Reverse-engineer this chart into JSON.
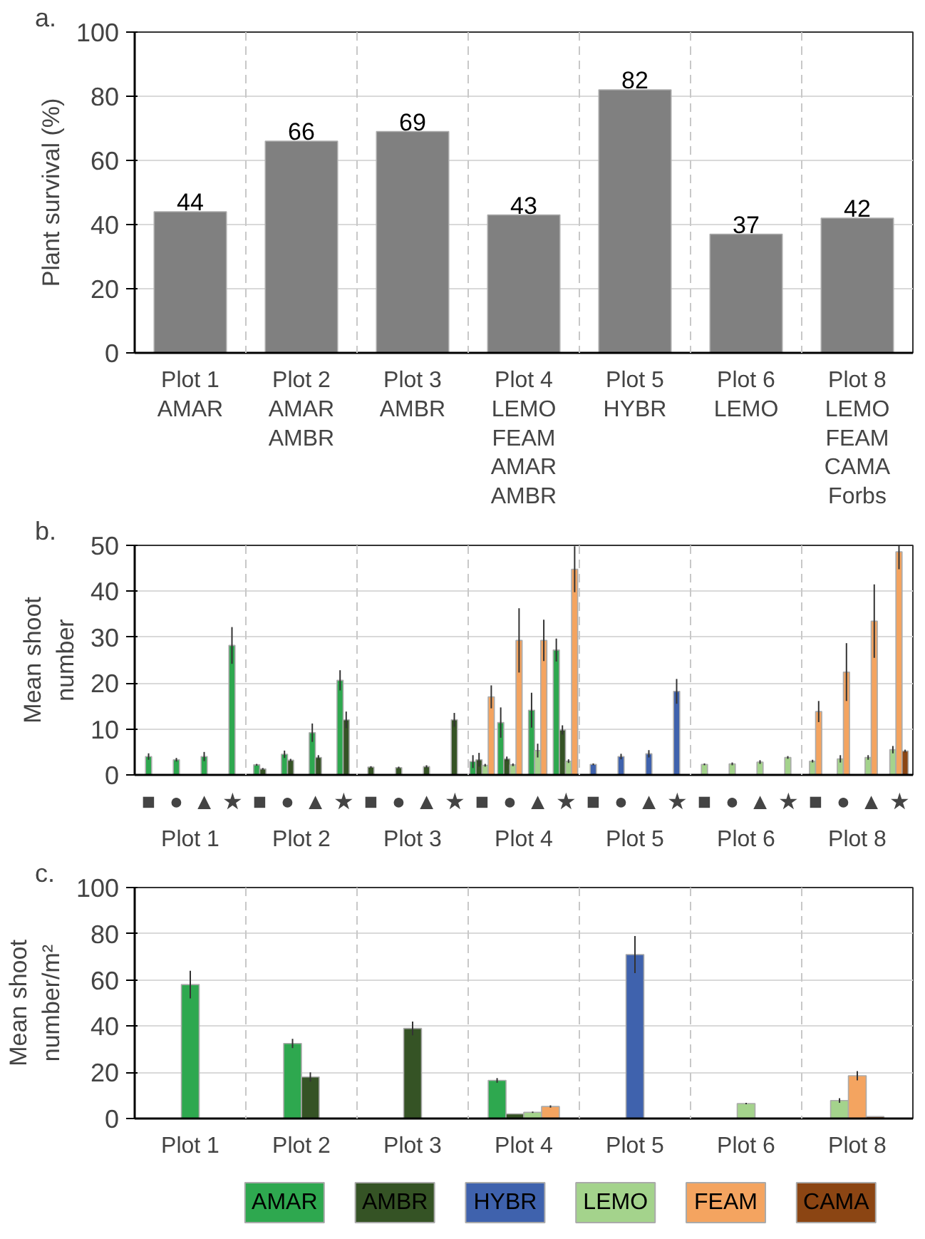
{
  "chart_data": [
    {
      "type": "bar",
      "title": "a.",
      "ylabel": "Plant survival (%)",
      "categories": [
        "Plot 1\nAMAR",
        "Plot 2\nAMAR\nAMBR",
        "Plot 3\nAMBR",
        "Plot 4\nLEMO\nFEAM\nAMAR\nAMBR",
        "Plot 5\nHYBR",
        "Plot 6\nLEMO",
        "Plot 8\nLEMO\nFEAM\nCAMA\nForbs"
      ],
      "values": [
        44,
        66,
        69,
        43,
        82,
        37,
        42
      ],
      "color": "#808080",
      "data_labels": true,
      "ylim": [
        0,
        100
      ],
      "yticks": [
        0,
        20,
        40,
        60,
        80,
        100
      ],
      "grid": "y"
    },
    {
      "type": "bar",
      "title": "b.",
      "ylabel": "Mean shoot\nnumber",
      "categories": [
        "■",
        "●",
        "▲",
        "★",
        "■",
        "●",
        "▲",
        "★",
        "■",
        "●",
        "▲",
        "★",
        "■",
        "●",
        "▲",
        "★",
        "■",
        "●",
        "▲",
        "★",
        "■",
        "●",
        "▲",
        "★",
        "■",
        "●",
        "▲",
        "★"
      ],
      "annotations": [
        "Plot 1",
        "Plot 2",
        "Plot 3",
        "Plot 4",
        "Plot 5",
        "Plot 6",
        "Plot 8"
      ],
      "series": [
        {
          "color": "#2ea84f",
          "values": [
            4,
            3.3,
            4,
            28.2,
            2.2,
            4.5,
            9.2,
            20.6,
            null,
            null,
            null,
            null,
            2.9,
            11.4,
            14.1,
            27.2,
            null,
            null,
            null,
            null,
            null,
            null,
            null,
            null,
            null,
            null,
            null,
            null
          ],
          "errors": [
            0.7,
            0.4,
            1,
            4,
            0.2,
            0.8,
            2,
            2.2,
            null,
            null,
            null,
            null,
            1.4,
            3.3,
            3.8,
            2.5,
            null,
            null,
            null,
            null,
            null,
            null,
            null,
            null,
            null,
            null,
            null,
            null
          ]
        },
        {
          "color": "#355325",
          "values": [
            null,
            null,
            null,
            null,
            1.3,
            3.2,
            3.8,
            12,
            1.7,
            1.6,
            1.8,
            12,
            3.3,
            3.5,
            null,
            9.8,
            null,
            null,
            null,
            null,
            null,
            null,
            null,
            null,
            null,
            null,
            null,
            null
          ],
          "errors": [
            null,
            null,
            null,
            null,
            0.2,
            0.3,
            0.5,
            1.8,
            0.2,
            0.2,
            0.3,
            1.5,
            1.5,
            0.5,
            null,
            1,
            null,
            null,
            null,
            null,
            null,
            null,
            null,
            null,
            null,
            null,
            null,
            null
          ]
        },
        {
          "color": "#3f62ad",
          "values": [
            null,
            null,
            null,
            null,
            null,
            null,
            null,
            null,
            null,
            null,
            null,
            null,
            null,
            null,
            null,
            null,
            2.3,
            4,
            4.6,
            18.2,
            null,
            null,
            null,
            null,
            null,
            null,
            null,
            null
          ],
          "errors": [
            null,
            null,
            null,
            null,
            null,
            null,
            null,
            null,
            null,
            null,
            null,
            null,
            null,
            null,
            null,
            null,
            0.2,
            0.6,
            0.8,
            2.7,
            null,
            null,
            null,
            null,
            null,
            null,
            null,
            null
          ]
        },
        {
          "color": "#a4d38c",
          "values": [
            null,
            null,
            null,
            null,
            null,
            null,
            null,
            null,
            null,
            null,
            null,
            null,
            2.1,
            2.2,
            5.3,
            3,
            null,
            null,
            null,
            null,
            2.3,
            2.4,
            2.8,
            3.8,
            3,
            3.5,
            3.8,
            5.5
          ],
          "errors": [
            null,
            null,
            null,
            null,
            null,
            null,
            null,
            null,
            null,
            null,
            null,
            null,
            0.3,
            0.3,
            1.5,
            0.4,
            null,
            null,
            null,
            null,
            0.2,
            0.3,
            0.4,
            0.3,
            0.3,
            0.8,
            0.5,
            0.8
          ]
        },
        {
          "color": "#f4a460",
          "values": [
            null,
            null,
            null,
            null,
            null,
            null,
            null,
            null,
            null,
            null,
            null,
            null,
            17,
            29.3,
            29.3,
            44.8,
            null,
            null,
            null,
            null,
            null,
            null,
            null,
            null,
            13.8,
            22.4,
            33.5,
            48.6
          ],
          "errors": [
            null,
            null,
            null,
            null,
            null,
            null,
            null,
            null,
            null,
            null,
            null,
            null,
            2.5,
            7,
            4.5,
            5,
            null,
            null,
            null,
            null,
            null,
            null,
            null,
            null,
            2.3,
            6.3,
            8,
            [
              44.8,
              50
            ]
          ]
        },
        {
          "color": "#8b4513",
          "values": [
            null,
            null,
            null,
            null,
            null,
            null,
            null,
            null,
            null,
            null,
            null,
            null,
            null,
            null,
            null,
            null,
            null,
            null,
            null,
            null,
            null,
            null,
            null,
            null,
            null,
            null,
            null,
            5.2
          ],
          "errors": [
            null,
            null,
            null,
            null,
            null,
            null,
            null,
            null,
            null,
            null,
            null,
            null,
            null,
            null,
            null,
            null,
            null,
            null,
            null,
            null,
            null,
            null,
            null,
            null,
            null,
            null,
            null,
            0.3
          ]
        }
      ],
      "ylim": [
        0,
        50
      ],
      "yticks": [
        0,
        10,
        20,
        30,
        40,
        50
      ],
      "grid": "y"
    },
    {
      "type": "bar",
      "title": "c.",
      "ylabel": "Mean shoot\nnumber/m²",
      "categories": [
        "Plot 1",
        "Plot 2",
        "Plot 3",
        "Plot 4",
        "Plot 5",
        "Plot 6",
        "Plot 8"
      ],
      "series": [
        {
          "name": "AMAR",
          "color": "#2ea84f",
          "values": [
            58,
            32.5,
            null,
            16.5,
            null,
            null,
            null
          ],
          "errors": [
            6,
            2,
            null,
            1,
            null,
            null,
            null
          ]
        },
        {
          "name": "AMBR",
          "color": "#355325",
          "values": [
            null,
            18,
            39,
            2,
            null,
            null,
            null
          ],
          "errors": [
            null,
            2,
            3,
            null,
            null,
            null,
            null
          ]
        },
        {
          "name": "HYBR",
          "color": "#3f62ad",
          "values": [
            null,
            null,
            null,
            null,
            71,
            null,
            null
          ],
          "errors": [
            null,
            null,
            null,
            null,
            8,
            null,
            null
          ]
        },
        {
          "name": "LEMO",
          "color": "#a4d38c",
          "values": [
            null,
            null,
            null,
            2.7,
            null,
            6.5,
            7.8
          ],
          "errors": [
            null,
            null,
            null,
            0.3,
            null,
            0.3,
            1
          ]
        },
        {
          "name": "FEAM",
          "color": "#f4a460",
          "values": [
            null,
            null,
            null,
            5.2,
            null,
            null,
            18.5
          ],
          "errors": [
            null,
            null,
            null,
            0.5,
            null,
            null,
            2
          ]
        },
        {
          "name": "CAMA",
          "color": "#8b4513",
          "values": [
            null,
            null,
            null,
            null,
            null,
            null,
            0.8
          ]
        }
      ],
      "ylim": [
        0,
        100
      ],
      "yticks": [
        0,
        20,
        40,
        60,
        80,
        100
      ],
      "grid": "y",
      "legend": "bottom"
    }
  ]
}
